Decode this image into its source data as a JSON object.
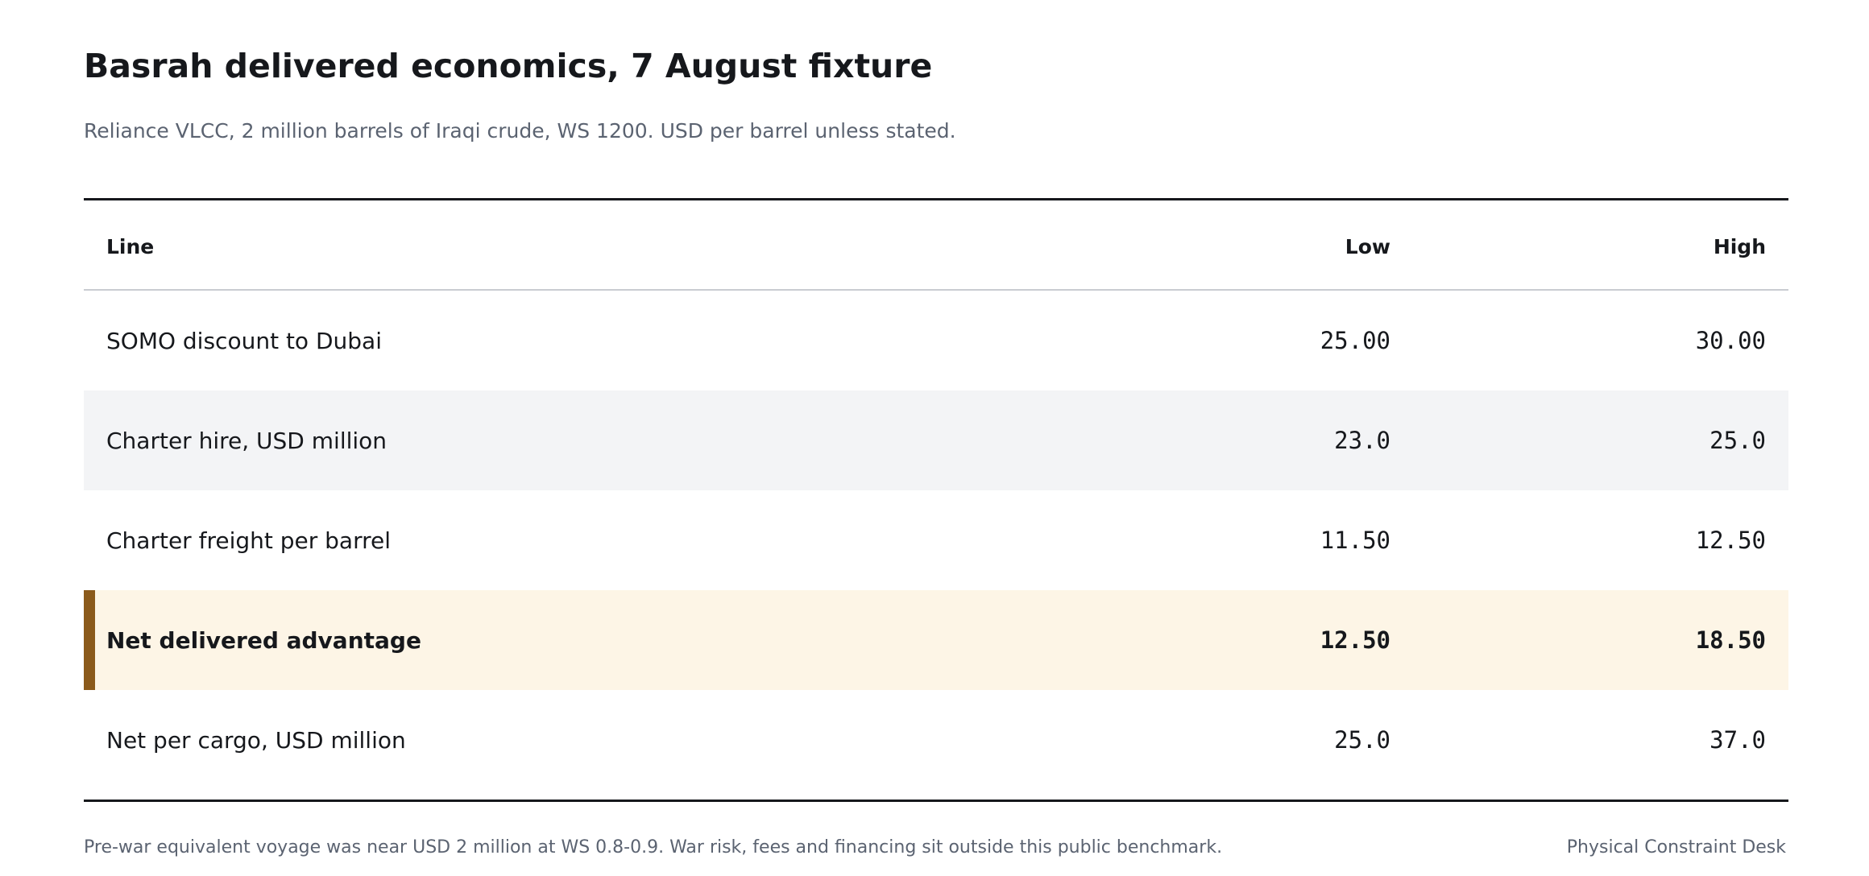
{
  "header": {
    "title": "Basrah delivered economics, 7 August fixture",
    "subtitle": "Reliance VLCC, 2 million barrels of Iraqi crude, WS 1200. USD per barrel unless stated."
  },
  "table": {
    "columns": {
      "line": "Line",
      "low": "Low",
      "high": "High"
    },
    "rows": [
      {
        "line": "SOMO discount to Dubai",
        "low": "25.00",
        "high": "30.00"
      },
      {
        "line": "Charter hire, USD million",
        "low": "23.0",
        "high": "25.0"
      },
      {
        "line": "Charter freight per barrel",
        "low": "11.50",
        "high": "12.50"
      },
      {
        "line": "Net delivered advantage",
        "low": "12.50",
        "high": "18.50"
      },
      {
        "line": "Net per cargo, USD million",
        "low": "25.0",
        "high": "37.0"
      }
    ],
    "highlight_color": "#fdf5e6",
    "accent_color": "#8b5a1b"
  },
  "footer": {
    "note": "Pre-war equivalent voyage was near USD 2 million at WS 0.8-0.9. War risk, fees and financing sit outside this public benchmark.",
    "source": "Physical Constraint Desk"
  }
}
